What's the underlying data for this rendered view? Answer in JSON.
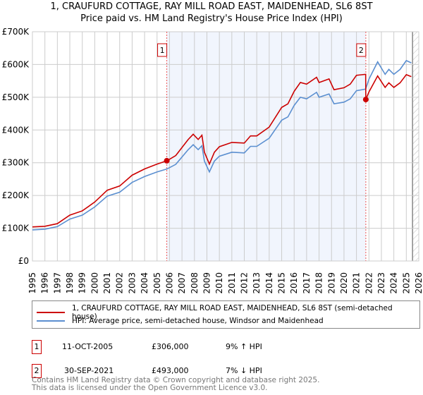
{
  "title": "1, CRAUFURD COTTAGE, RAY MILL ROAD EAST, MAIDENHEAD, SL6 8ST",
  "subtitle": "Price paid vs. HM Land Registry's House Price Index (HPI)",
  "chart_data": {
    "type": "line",
    "xlim": [
      1995,
      2026
    ],
    "ylim": [
      0,
      700000
    ],
    "yticks": [
      {
        "v": 0,
        "label": "£0"
      },
      {
        "v": 100000,
        "label": "£100K"
      },
      {
        "v": 200000,
        "label": "£200K"
      },
      {
        "v": 300000,
        "label": "£300K"
      },
      {
        "v": 400000,
        "label": "£400K"
      },
      {
        "v": 500000,
        "label": "£500K"
      },
      {
        "v": 600000,
        "label": "£600K"
      },
      {
        "v": 700000,
        "label": "£700K"
      }
    ],
    "xticks": [
      "1995",
      "1996",
      "1997",
      "1998",
      "1999",
      "2000",
      "2001",
      "2002",
      "2003",
      "2004",
      "2005",
      "2006",
      "2007",
      "2008",
      "2009",
      "2010",
      "2011",
      "2012",
      "2013",
      "2014",
      "2015",
      "2016",
      "2017",
      "2018",
      "2019",
      "2020",
      "2021",
      "2022",
      "2023",
      "2024",
      "2025",
      "2026"
    ],
    "shaded_range": [
      2005.78,
      2021.75
    ],
    "forecast_start": 2025.5,
    "series": [
      {
        "name": "1, CRAUFURD COTTAGE, RAY MILL ROAD EAST, MAIDENHEAD, SL6 8ST (semi-detached house)",
        "color": "#cc0000",
        "x": [
          1995,
          1996,
          1997,
          1998,
          1999,
          2000,
          2001,
          2002,
          2003,
          2004,
          2005,
          2005.8,
          2006.5,
          2007.5,
          2007.9,
          2008.3,
          2008.6,
          2008.8,
          2009.2,
          2009.6,
          2010,
          2011,
          2012,
          2012.5,
          2013,
          2014,
          2015,
          2015.5,
          2016,
          2016.5,
          2017,
          2017.8,
          2018,
          2018.8,
          2019.2,
          2020,
          2020.5,
          2021,
          2021.74,
          2021.75,
          2022,
          2022.7,
          2023.3,
          2023.6,
          2024,
          2024.5,
          2025,
          2025.4
        ],
        "y": [
          104000,
          106000,
          114000,
          140000,
          153000,
          180000,
          216000,
          229000,
          262000,
          281000,
          296000,
          306000,
          322000,
          371000,
          387000,
          371000,
          384000,
          332000,
          296000,
          332000,
          349000,
          362000,
          360000,
          382000,
          382000,
          409000,
          469000,
          480000,
          518000,
          545000,
          540000,
          561000,
          545000,
          556000,
          523000,
          529000,
          540000,
          567000,
          570000,
          493000,
          516000,
          565000,
          530000,
          544000,
          530000,
          544000,
          569000,
          563000
        ]
      },
      {
        "name": "HPI: Average price, semi-detached house, Windsor and Maidenhead",
        "color": "#5b8fd0",
        "x": [
          1995,
          1996,
          1997,
          1998,
          1999,
          2000,
          2001,
          2002,
          2003,
          2004,
          2005,
          2005.8,
          2006.5,
          2007.5,
          2007.9,
          2008.3,
          2008.6,
          2008.8,
          2009.2,
          2009.6,
          2010,
          2011,
          2012,
          2012.5,
          2013,
          2014,
          2015,
          2015.5,
          2016,
          2016.5,
          2017,
          2017.8,
          2018,
          2018.8,
          2019.2,
          2020,
          2020.5,
          2021,
          2021.74,
          2022,
          2022.7,
          2023.3,
          2023.6,
          2024,
          2024.5,
          2025,
          2025.4
        ],
        "y": [
          95000,
          97000,
          105000,
          128000,
          140000,
          165000,
          198000,
          210000,
          240000,
          258000,
          272000,
          281000,
          295000,
          340000,
          355000,
          340000,
          352000,
          305000,
          272000,
          305000,
          320000,
          332000,
          330000,
          350000,
          350000,
          375000,
          430000,
          440000,
          475000,
          500000,
          495000,
          515000,
          500000,
          510000,
          480000,
          485000,
          495000,
          520000,
          525000,
          555000,
          608000,
          570000,
          585000,
          570000,
          585000,
          612000,
          605000
        ]
      }
    ],
    "sales": [
      {
        "label": "1",
        "x": 2005.78,
        "y": 306000
      },
      {
        "label": "2",
        "x": 2021.75,
        "y": 493000
      }
    ]
  },
  "legend": {
    "red": "1, CRAUFURD COTTAGE, RAY MILL ROAD EAST, MAIDENHEAD, SL6 8ST (semi-detached house)",
    "blue": "HPI: Average price, semi-detached house, Windsor and Maidenhead"
  },
  "transactions": [
    {
      "num": "1",
      "date": "11-OCT-2005",
      "price": "£306,000",
      "hpi": "9% ↑ HPI"
    },
    {
      "num": "2",
      "date": "30-SEP-2021",
      "price": "£493,000",
      "hpi": "7% ↓ HPI"
    }
  ],
  "footer": [
    "Contains HM Land Registry data © Crown copyright and database right 2025.",
    "This data is licensed under the Open Government Licence v3.0."
  ]
}
